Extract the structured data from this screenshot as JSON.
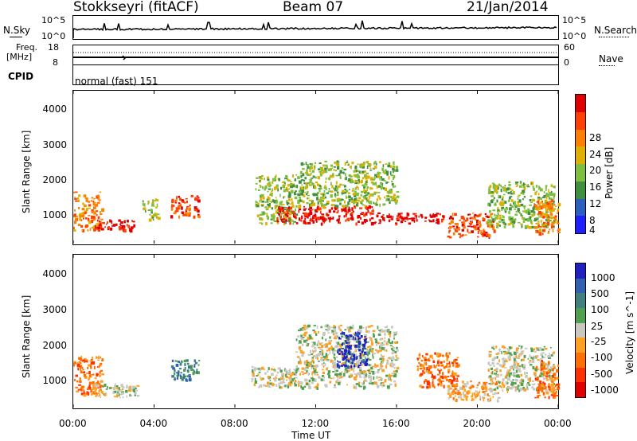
{
  "header": {
    "station": "Stokkseyri (fitACF)",
    "beam": "Beam 07",
    "date": "21/Jan/2014"
  },
  "noise_panel": {
    "left_label": "N.Sky",
    "left_tick_top": "10^5",
    "left_tick_bottom": "10^0",
    "right_tick_top": "10^5",
    "right_tick_bottom": "10^0",
    "right_label": "N.Search"
  },
  "freq_panel": {
    "left_label_1": "Freq.",
    "left_label_2": "[MHz]",
    "left_tick_top": "18",
    "left_tick_bottom": "8",
    "right_tick_top": "60",
    "right_tick_bottom": "0",
    "right_label": "Nave"
  },
  "cpid": {
    "label": "CPID",
    "value": "normal (fast) 151"
  },
  "colors": {
    "power": [
      "#1f1fff",
      "#2b5fbf",
      "#3f8f3f",
      "#7fbf3f",
      "#e0b000",
      "#ff8000",
      "#ff4000",
      "#e00000"
    ],
    "velocity": [
      "#2020c0",
      "#3060b0",
      "#408080",
      "#50a050",
      "#c8c8c0",
      "#ffa020",
      "#ff7000",
      "#ff3000",
      "#e00000"
    ],
    "ground_scatter": "#c8c8c0"
  },
  "chart_data": [
    {
      "type": "heatmap",
      "name_panel": "power",
      "ylabel": "Slant Range [km]",
      "y_ticks": [
        "1000",
        "2000",
        "3000",
        "4000"
      ],
      "ylim": [
        200,
        4600
      ],
      "colorbar": {
        "label": "Power [dB]",
        "ticks": [
          "4",
          "8",
          "12",
          "16",
          "20",
          "24",
          "28"
        ],
        "range": [
          0,
          32
        ]
      },
      "regions": [
        {
          "t0": 0.0,
          "t1": 1.4,
          "r0": 600,
          "r1": 1700,
          "level": 5
        },
        {
          "t0": 1.0,
          "t1": 3.0,
          "r0": 600,
          "r1": 900,
          "level": 7
        },
        {
          "t0": 3.4,
          "t1": 4.2,
          "r0": 900,
          "r1": 1500,
          "level": 3
        },
        {
          "t0": 4.8,
          "t1": 6.2,
          "r0": 1000,
          "r1": 1600,
          "level": 6
        },
        {
          "t0": 9.0,
          "t1": 11.0,
          "r0": 800,
          "r1": 2200,
          "level": 3
        },
        {
          "t0": 10.0,
          "t1": 15.0,
          "r0": 800,
          "r1": 1300,
          "level": 7
        },
        {
          "t0": 11.0,
          "t1": 16.0,
          "r0": 1300,
          "r1": 2600,
          "level": 3
        },
        {
          "t0": 15.0,
          "t1": 18.4,
          "r0": 800,
          "r1": 1100,
          "level": 7
        },
        {
          "t0": 18.5,
          "t1": 20.8,
          "r0": 400,
          "r1": 1100,
          "level": 6
        },
        {
          "t0": 20.5,
          "t1": 23.8,
          "r0": 700,
          "r1": 2000,
          "level": 3
        },
        {
          "t0": 22.8,
          "t1": 24.0,
          "r0": 500,
          "r1": 1500,
          "level": 5
        }
      ]
    },
    {
      "type": "heatmap",
      "name_panel": "velocity",
      "ylabel": "Slant Range [km]",
      "y_ticks": [
        "1000",
        "2000",
        "3000",
        "4000"
      ],
      "ylim": [
        200,
        4600
      ],
      "xlabel": "Time UT",
      "x_ticks": [
        "00:00",
        "04:00",
        "08:00",
        "12:00",
        "16:00",
        "20:00",
        "00:00"
      ],
      "xlim": [
        0,
        24
      ],
      "colorbar": {
        "label": "Velocity [m s^-1]",
        "ticks": [
          "1000",
          "500",
          "100",
          "25",
          "-25",
          "-100",
          "-500",
          "-1000"
        ]
      },
      "regions": [
        {
          "t0": 0.0,
          "t1": 1.4,
          "r0": 600,
          "r1": 1700,
          "level": 6
        },
        {
          "t0": 1.0,
          "t1": 3.2,
          "r0": 500,
          "r1": 900,
          "level": 4
        },
        {
          "t0": 4.8,
          "t1": 6.2,
          "r0": 1000,
          "r1": 1600,
          "level": 2
        },
        {
          "t0": 8.8,
          "t1": 16.0,
          "r0": 800,
          "r1": 1400,
          "level": 4
        },
        {
          "t0": 11.0,
          "t1": 16.0,
          "r0": 1400,
          "r1": 2600,
          "level": 4
        },
        {
          "t0": 13.0,
          "t1": 14.5,
          "r0": 1400,
          "r1": 2400,
          "level": 0
        },
        {
          "t0": 17.0,
          "t1": 19.0,
          "r0": 800,
          "r1": 1800,
          "level": 6
        },
        {
          "t0": 18.5,
          "t1": 21.0,
          "r0": 400,
          "r1": 1000,
          "level": 5
        },
        {
          "t0": 20.5,
          "t1": 23.8,
          "r0": 700,
          "r1": 2000,
          "level": 4
        },
        {
          "t0": 22.8,
          "t1": 24.0,
          "r0": 500,
          "r1": 1600,
          "level": 6
        }
      ]
    }
  ]
}
